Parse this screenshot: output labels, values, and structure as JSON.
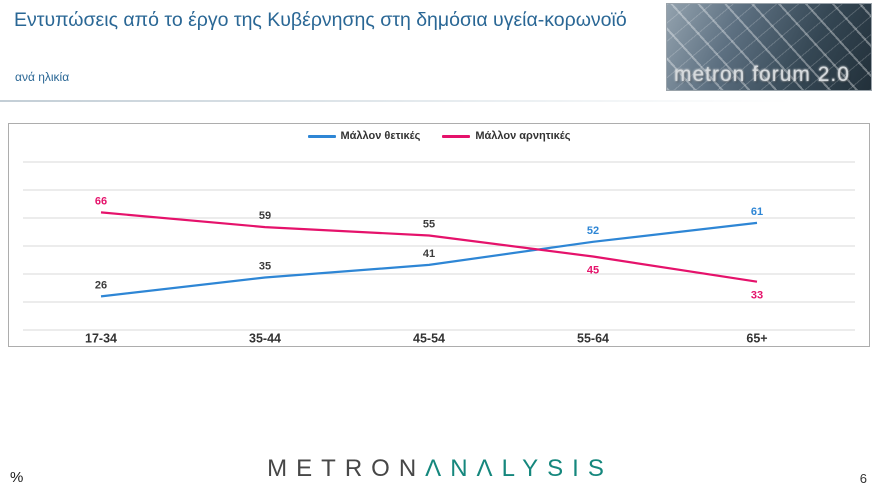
{
  "header": {
    "title": "Εντυπώσεις από το έργο της Κυβέρνησης στη δημόσια υγεία-κορωνοϊό",
    "subtitle": "ανά ηλικία"
  },
  "logo_badge": {
    "text": "metron forum 2.0"
  },
  "chart_data": {
    "type": "line",
    "title": "",
    "xlabel": "",
    "ylabel": "",
    "categories": [
      "17-34",
      "35-44",
      "45-54",
      "55-64",
      "65+"
    ],
    "series": [
      {
        "name": "Μάλλον θετικές",
        "color": "#2E86D5",
        "values": [
          26,
          35,
          41,
          52,
          61
        ],
        "label_colors": [
          "#3c3c3c",
          "#3c3c3c",
          "#3c3c3c",
          "#2E86D5",
          "#2E86D5"
        ],
        "label_side": [
          "above",
          "above",
          "above",
          "above",
          "above"
        ]
      },
      {
        "name": "Μάλλον αρνητικές",
        "color": "#E5126B",
        "values": [
          66,
          59,
          55,
          45,
          33
        ],
        "label_colors": [
          "#E5126B",
          "#3c3c3c",
          "#3c3c3c",
          "#E5126B",
          "#E5126B"
        ],
        "label_side": [
          "above",
          "above",
          "above",
          "below",
          "below"
        ]
      }
    ],
    "ylim": [
      10,
      90
    ],
    "gridlines": 7,
    "grid": true,
    "legend_position": "top"
  },
  "colors": {
    "accent_blue": "#2E86D5",
    "accent_pink": "#E5126B",
    "title_blue": "#2A6795",
    "brand_dark": "#474747",
    "brand_teal": "#15877D",
    "gridline": "#d9d9d9",
    "axis_label": "#333333"
  },
  "footer": {
    "percent_label": "%",
    "page_number": "6",
    "brand": {
      "part1": "METRON",
      "part2": "ΛNΛLYSIS"
    }
  }
}
